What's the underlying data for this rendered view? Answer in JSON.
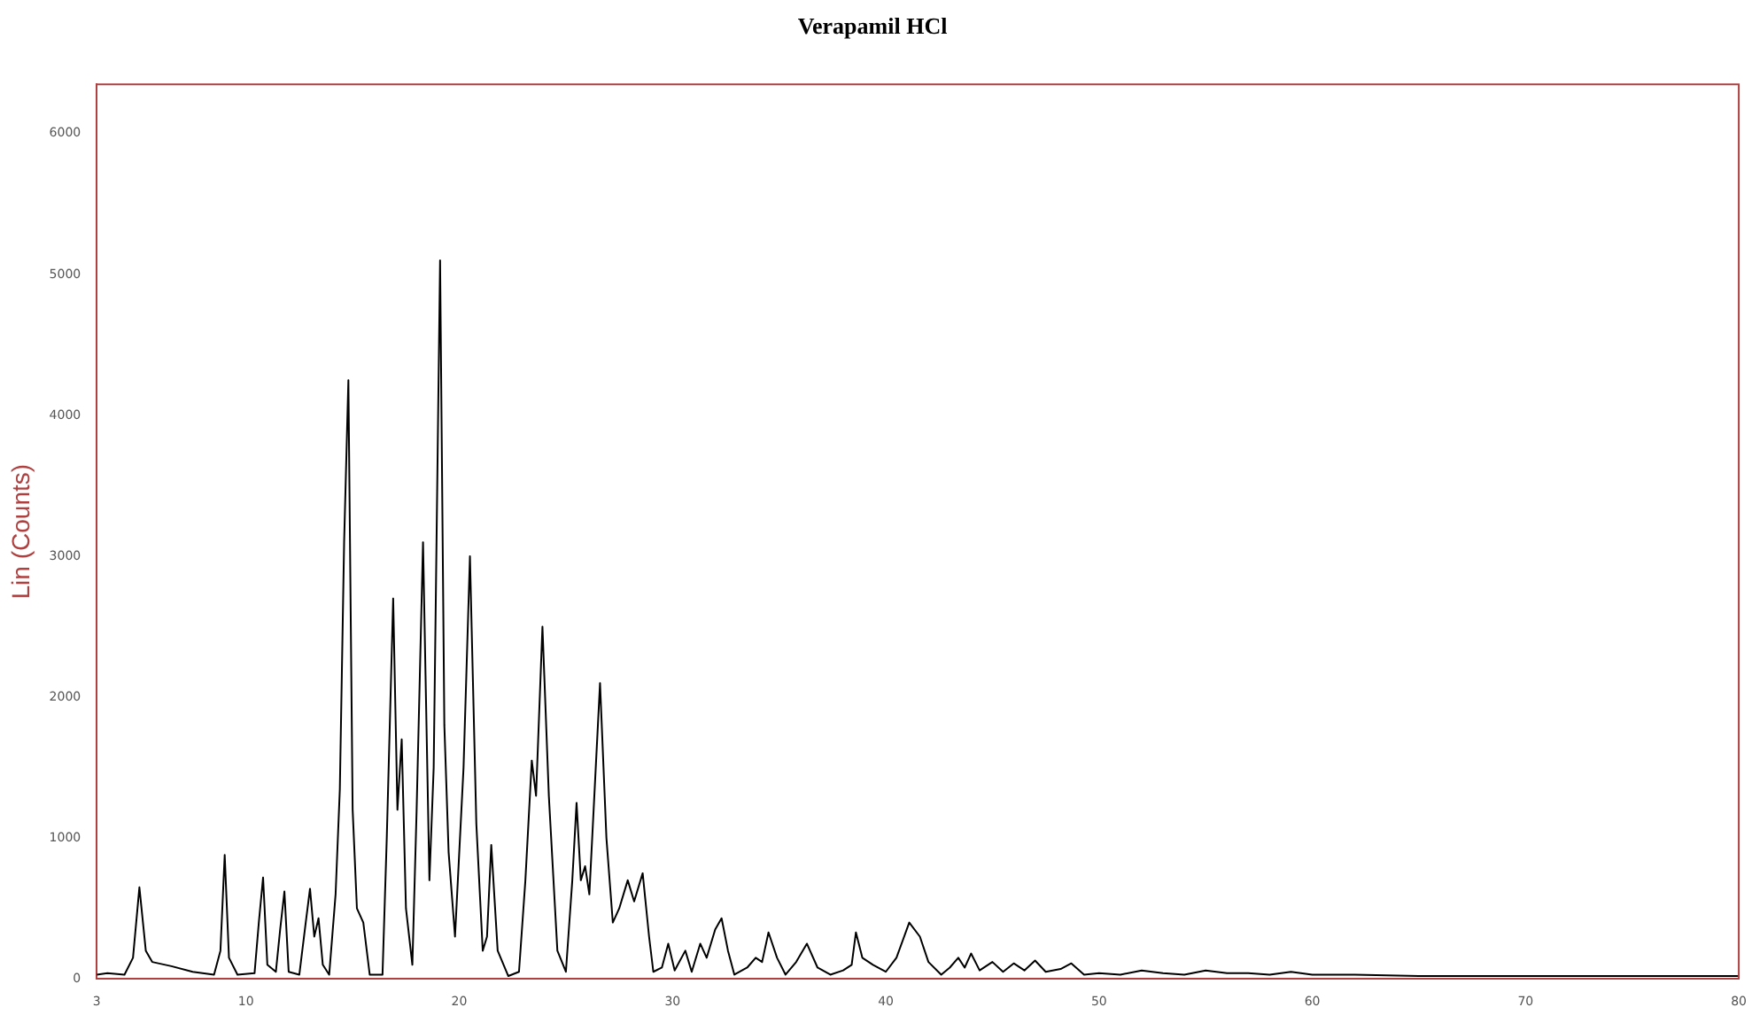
{
  "chart_data": {
    "type": "line",
    "title": "Verapamil HCl",
    "ylabel": "Lin (Counts)",
    "marker": "none",
    "grid": false,
    "legend": false,
    "xlim": [
      3,
      80
    ],
    "xticks": [
      3,
      10,
      20,
      30,
      40,
      50,
      60,
      70,
      80
    ],
    "ylim": [
      0,
      6350
    ],
    "yticks": [
      0,
      1000,
      2000,
      3000,
      4000,
      5000,
      6000
    ],
    "series": [
      {
        "color": "#000000",
        "x": [
          3,
          3.5,
          4.3,
          4.7,
          5.0,
          5.3,
          5.6,
          6.5,
          7.5,
          8.5,
          8.8,
          9.0,
          9.2,
          9.6,
          10.4,
          10.6,
          10.8,
          11.0,
          11.4,
          11.6,
          11.8,
          12.0,
          12.5,
          12.8,
          13.0,
          13.2,
          13.4,
          13.6,
          13.9,
          14.2,
          14.4,
          14.6,
          14.8,
          15.0,
          15.2,
          15.5,
          15.8,
          16.4,
          16.6,
          16.9,
          17.1,
          17.3,
          17.5,
          17.8,
          18.0,
          18.3,
          18.6,
          18.8,
          19.1,
          19.3,
          19.5,
          19.8,
          20.2,
          20.5,
          20.8,
          21.1,
          21.3,
          21.5,
          21.8,
          22.3,
          22.8,
          23.1,
          23.4,
          23.6,
          23.9,
          24.2,
          24.6,
          25.0,
          25.3,
          25.5,
          25.7,
          25.9,
          26.1,
          26.4,
          26.6,
          26.9,
          27.2,
          27.5,
          27.9,
          28.2,
          28.6,
          28.9,
          29.1,
          29.5,
          29.8,
          30.1,
          30.6,
          30.9,
          31.3,
          31.6,
          32.0,
          32.3,
          32.6,
          32.9,
          33.5,
          33.9,
          34.2,
          34.5,
          34.9,
          35.3,
          35.8,
          36.3,
          36.8,
          37.4,
          38.0,
          38.4,
          38.6,
          38.9,
          39.4,
          40.0,
          40.5,
          41.1,
          41.6,
          42.0,
          42.6,
          43.0,
          43.4,
          43.7,
          44.0,
          44.4,
          45.0,
          45.5,
          46.0,
          46.5,
          47.0,
          47.5,
          48.2,
          48.7,
          49.3,
          50,
          51,
          52,
          53,
          54,
          55,
          56,
          57,
          58,
          59,
          60,
          62,
          65,
          70,
          75,
          80
        ],
        "values": [
          30,
          40,
          30,
          150,
          650,
          200,
          120,
          90,
          50,
          30,
          200,
          880,
          150,
          30,
          40,
          400,
          720,
          100,
          50,
          350,
          620,
          50,
          30,
          400,
          640,
          300,
          430,
          100,
          30,
          600,
          1350,
          3100,
          4250,
          1200,
          500,
          400,
          30,
          30,
          1000,
          2700,
          1200,
          1700,
          500,
          100,
          1200,
          3100,
          700,
          1500,
          5100,
          1800,
          900,
          300,
          1500,
          3000,
          1100,
          200,
          300,
          950,
          200,
          20,
          50,
          700,
          1550,
          1300,
          2500,
          1300,
          200,
          50,
          700,
          1250,
          700,
          800,
          600,
          1500,
          2100,
          1000,
          400,
          500,
          700,
          550,
          750,
          300,
          50,
          80,
          250,
          60,
          200,
          50,
          250,
          150,
          350,
          430,
          200,
          30,
          80,
          150,
          120,
          330,
          150,
          30,
          120,
          250,
          80,
          30,
          60,
          100,
          330,
          150,
          100,
          50,
          150,
          400,
          300,
          120,
          30,
          80,
          150,
          80,
          180,
          60,
          120,
          50,
          110,
          60,
          130,
          50,
          70,
          110,
          30,
          40,
          30,
          60,
          40,
          30,
          60,
          40,
          40,
          30,
          50,
          30,
          30,
          20,
          20,
          20,
          20
        ]
      }
    ]
  }
}
